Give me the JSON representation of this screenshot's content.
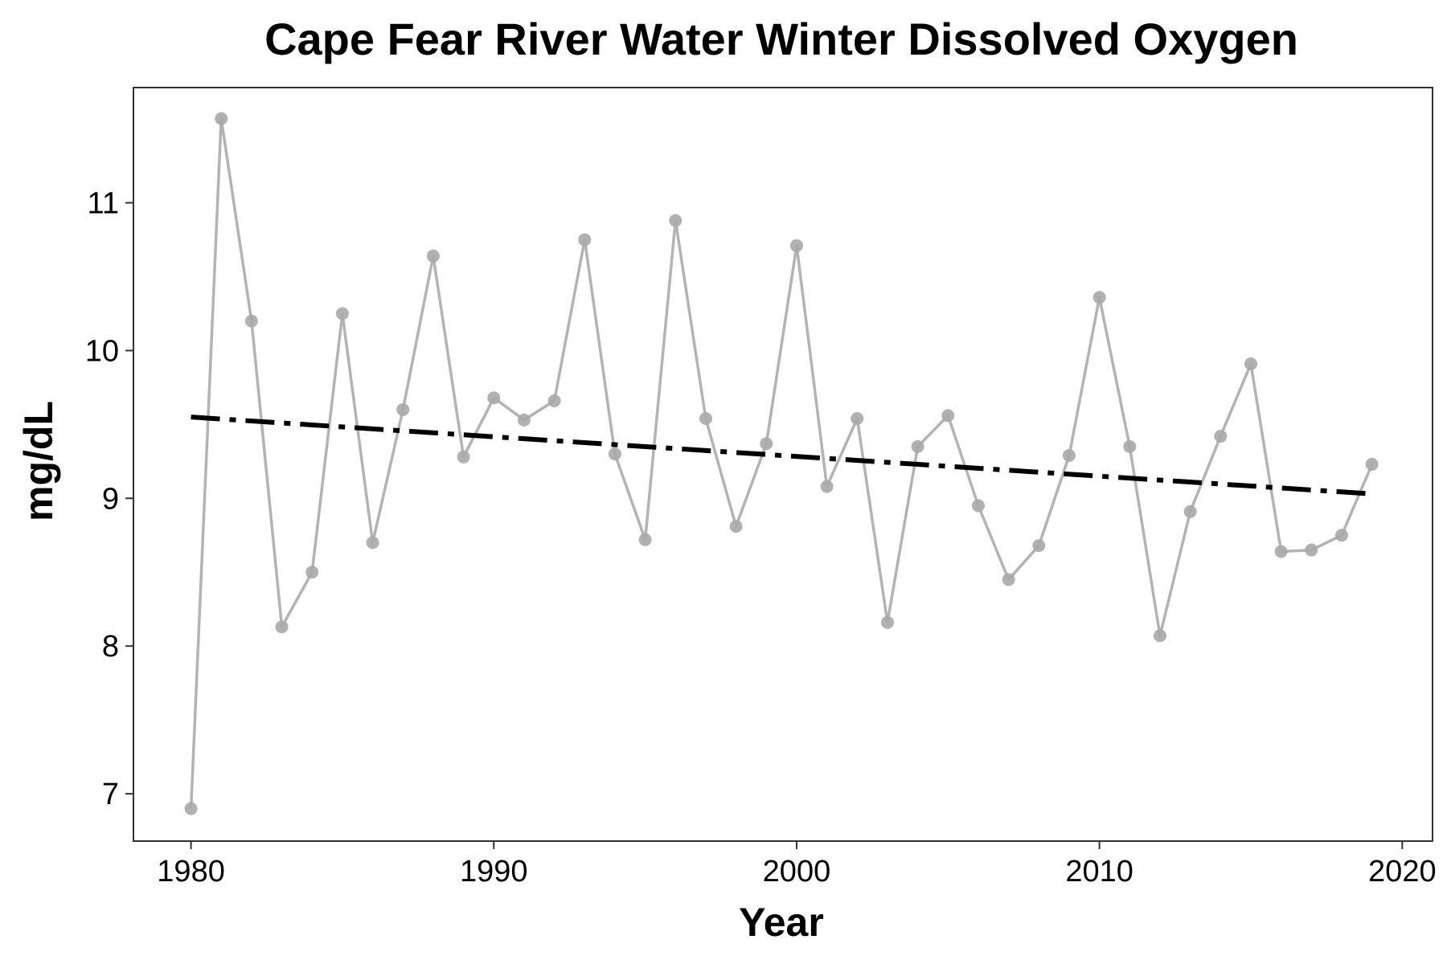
{
  "colors": {
    "series": "#b3b3b3",
    "points": "#a9a9a9",
    "trend": "#000000",
    "panel_border": "#333333",
    "background": "#ffffff"
  },
  "chart_data": {
    "type": "line",
    "title": "Cape Fear River Water Winter Dissolved Oxygen",
    "xlabel": "Year",
    "ylabel": "mg/dL",
    "xlim": [
      1978.1,
      2021.0
    ],
    "ylim": [
      6.68,
      11.78
    ],
    "x_ticks": [
      1980,
      1990,
      2000,
      2010,
      2020
    ],
    "y_ticks": [
      7,
      8,
      9,
      10,
      11
    ],
    "x_tick_labels": [
      "1980",
      "1990",
      "2000",
      "2010",
      "2020"
    ],
    "y_tick_labels": [
      "7",
      "8",
      "9",
      "10",
      "11"
    ],
    "grid": false,
    "legend": "none",
    "series": [
      {
        "style": "line+points",
        "x": [
          1980,
          1981,
          1982,
          1983,
          1984,
          1985,
          1986,
          1987,
          1988,
          1989,
          1990,
          1991,
          1992,
          1993,
          1994,
          1995,
          1996,
          1997,
          1998,
          1999,
          2000,
          2001,
          2002,
          2003,
          2004,
          2005,
          2006,
          2007,
          2008,
          2009,
          2010,
          2011,
          2012,
          2013,
          2014,
          2015,
          2016,
          2017,
          2018,
          2019
        ],
        "y": [
          6.9,
          11.57,
          10.2,
          8.13,
          8.5,
          10.25,
          8.7,
          9.6,
          10.64,
          9.28,
          9.68,
          9.53,
          9.66,
          10.75,
          9.3,
          8.72,
          10.88,
          9.54,
          8.81,
          9.37,
          10.71,
          9.08,
          9.54,
          8.16,
          9.35,
          9.56,
          8.95,
          8.45,
          8.68,
          9.29,
          10.36,
          9.35,
          8.07,
          8.91,
          9.42,
          9.91,
          8.64,
          8.65,
          8.75,
          9.23
        ]
      },
      {
        "style": "trend-dashed",
        "x": [
          1980,
          2019
        ],
        "y": [
          9.55,
          9.03
        ]
      }
    ]
  }
}
